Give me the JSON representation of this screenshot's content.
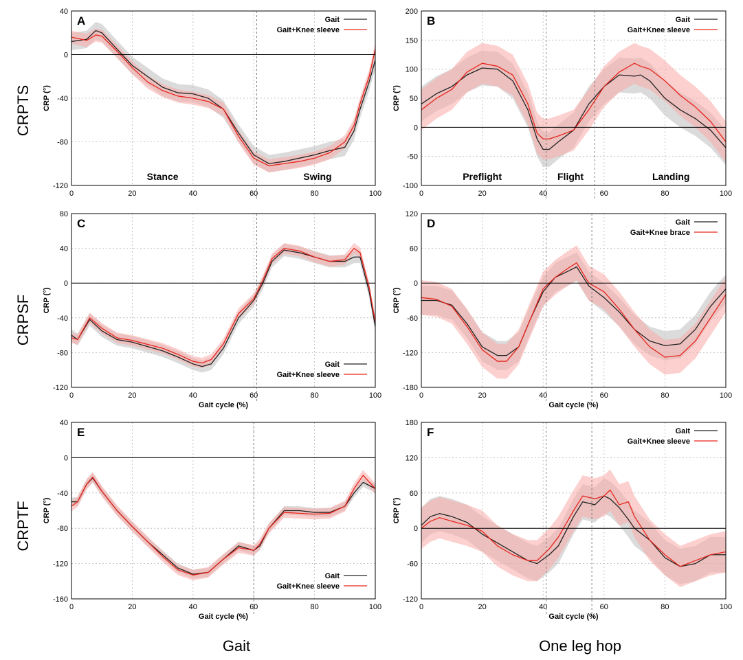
{
  "figure": {
    "row_labels": [
      "CRPTS",
      "CRPSF",
      "CRPTF"
    ],
    "column_titles": [
      "Gait",
      "One leg hop"
    ]
  },
  "colors": {
    "gait": "#222222",
    "sleeve": "#e8241c",
    "gait_band": "#bdbdbd",
    "sleeve_band": "#f7a9a6"
  },
  "chart_data": [
    {
      "panel": "A",
      "type": "line",
      "xlabel": "",
      "ylabel": "CRP (°)",
      "xlim": [
        0,
        100
      ],
      "ylim": [
        -120,
        40
      ],
      "xticks": [
        0,
        20,
        40,
        60,
        80,
        100
      ],
      "yticks": [
        -120,
        -80,
        -40,
        0,
        40
      ],
      "grid": true,
      "legend_position": "top-right",
      "vlines": [
        61
      ],
      "phase_labels": [
        {
          "text": "Stance",
          "x": 30
        },
        {
          "text": "Swing",
          "x": 81
        }
      ],
      "x": [
        0,
        5,
        8,
        10,
        15,
        20,
        25,
        30,
        35,
        40,
        45,
        50,
        55,
        60,
        65,
        70,
        75,
        80,
        85,
        90,
        93,
        95,
        98,
        100
      ],
      "series": [
        {
          "name": "Gait",
          "values": [
            12,
            14,
            22,
            20,
            5,
            -10,
            -20,
            -30,
            -35,
            -36,
            -40,
            -50,
            -72,
            -92,
            -100,
            -98,
            -95,
            -92,
            -88,
            -85,
            -70,
            -50,
            -25,
            -5
          ],
          "sd": 8
        },
        {
          "name": "Gait+Knee sleeve",
          "values": [
            16,
            13,
            18,
            17,
            3,
            -12,
            -25,
            -33,
            -38,
            -40,
            -43,
            -50,
            -75,
            -95,
            -102,
            -100,
            -98,
            -95,
            -90,
            -80,
            -65,
            -45,
            -20,
            5
          ],
          "sd": 6
        }
      ]
    },
    {
      "panel": "B",
      "type": "line",
      "xlabel": "",
      "ylabel": "CRP (°)",
      "xlim": [
        0,
        100
      ],
      "ylim": [
        -100,
        200
      ],
      "xticks": [
        0,
        20,
        40,
        60,
        80,
        100
      ],
      "yticks": [
        -100,
        -50,
        0,
        50,
        100,
        150,
        200
      ],
      "grid": true,
      "legend_position": "top-right",
      "vlines": [
        41,
        57
      ],
      "phase_labels": [
        {
          "text": "Preflight",
          "x": 20
        },
        {
          "text": "Flight",
          "x": 49
        },
        {
          "text": "Landing",
          "x": 82
        }
      ],
      "x": [
        0,
        5,
        10,
        15,
        20,
        25,
        30,
        35,
        38,
        40,
        42,
        45,
        50,
        55,
        60,
        65,
        70,
        72,
        75,
        80,
        85,
        90,
        95,
        100
      ],
      "series": [
        {
          "name": "Gait",
          "values": [
            40,
            58,
            70,
            90,
            102,
            100,
            80,
            30,
            -20,
            -38,
            -38,
            -25,
            -5,
            40,
            70,
            90,
            88,
            90,
            80,
            50,
            30,
            15,
            -5,
            -35
          ],
          "sd": 30
        },
        {
          "name": "Gait+Knee sleeve",
          "values": [
            30,
            50,
            65,
            95,
            110,
            105,
            90,
            40,
            -10,
            -20,
            -20,
            -15,
            -5,
            30,
            70,
            95,
            110,
            105,
            100,
            80,
            55,
            35,
            10,
            -25
          ],
          "sd": 35
        }
      ]
    },
    {
      "panel": "C",
      "type": "line",
      "xlabel": "Gait cycle (%)",
      "ylabel": "CRP (°)",
      "xlim": [
        0,
        100
      ],
      "ylim": [
        -120,
        80
      ],
      "xticks": [
        0,
        20,
        40,
        60,
        80,
        100
      ],
      "yticks": [
        -120,
        -80,
        -40,
        0,
        40,
        80
      ],
      "grid": true,
      "legend_position": "bottom-right",
      "vlines": [
        61
      ],
      "x": [
        0,
        2,
        6,
        10,
        15,
        20,
        30,
        35,
        40,
        43,
        46,
        50,
        55,
        60,
        63,
        66,
        70,
        75,
        80,
        85,
        90,
        93,
        95,
        98,
        100
      ],
      "series": [
        {
          "name": "Gait",
          "values": [
            -60,
            -65,
            -42,
            -55,
            -65,
            -68,
            -78,
            -85,
            -93,
            -96,
            -93,
            -75,
            -40,
            -20,
            0,
            25,
            38,
            35,
            30,
            25,
            25,
            30,
            30,
            -10,
            -50
          ],
          "sd": 7
        },
        {
          "name": "Gait+Knee sleeve",
          "values": [
            -63,
            -65,
            -40,
            -52,
            -63,
            -66,
            -75,
            -82,
            -90,
            -92,
            -88,
            -70,
            -35,
            -18,
            3,
            28,
            40,
            37,
            30,
            25,
            27,
            40,
            35,
            -5,
            -45
          ],
          "sd": 6
        }
      ]
    },
    {
      "panel": "D",
      "type": "line",
      "xlabel": "Gait cycle (%)",
      "ylabel": "CRP (°)",
      "xlim": [
        0,
        100
      ],
      "ylim": [
        -180,
        120
      ],
      "xticks": [
        0,
        20,
        40,
        60,
        80,
        100
      ],
      "yticks": [
        -180,
        -120,
        -60,
        0,
        60,
        120
      ],
      "grid": true,
      "legend_position": "top-right",
      "vlines": [
        41,
        56
      ],
      "x": [
        0,
        5,
        10,
        15,
        20,
        25,
        28,
        32,
        36,
        40,
        44,
        48,
        51,
        55,
        60,
        65,
        70,
        75,
        80,
        85,
        90,
        95,
        100
      ],
      "series": [
        {
          "name": "Gait",
          "values": [
            -30,
            -30,
            -38,
            -70,
            -110,
            -125,
            -125,
            -110,
            -60,
            -15,
            10,
            20,
            28,
            -5,
            -25,
            -50,
            -80,
            -100,
            -108,
            -105,
            -80,
            -40,
            -10
          ],
          "sd": 25
        },
        {
          "name": "Gait+Knee brace",
          "values": [
            -25,
            -28,
            -40,
            -75,
            -115,
            -135,
            -135,
            -110,
            -60,
            -10,
            10,
            25,
            35,
            0,
            -15,
            -45,
            -80,
            -110,
            -128,
            -125,
            -100,
            -60,
            -20
          ],
          "sd": 30
        }
      ]
    },
    {
      "panel": "E",
      "type": "line",
      "xlabel": "Gait cycle (%)",
      "ylabel": "CRP (°)",
      "xlim": [
        0,
        100
      ],
      "ylim": [
        -160,
        40
      ],
      "xticks": [
        0,
        20,
        40,
        60,
        80,
        100
      ],
      "yticks": [
        -160,
        -120,
        -80,
        -40,
        0,
        40
      ],
      "grid": true,
      "legend_position": "bottom-right",
      "vlines": [
        60
      ],
      "x": [
        0,
        2,
        5,
        7,
        10,
        15,
        20,
        25,
        30,
        35,
        40,
        45,
        50,
        55,
        60,
        62,
        65,
        70,
        75,
        80,
        85,
        90,
        93,
        96,
        100
      ],
      "series": [
        {
          "name": "Gait",
          "values": [
            -50,
            -50,
            -30,
            -23,
            -38,
            -60,
            -78,
            -95,
            -110,
            -125,
            -132,
            -130,
            -115,
            -100,
            -105,
            -100,
            -80,
            -60,
            -60,
            -62,
            -62,
            -55,
            -40,
            -28,
            -35
          ],
          "sd": 5
        },
        {
          "name": "Gait+Knee sleeve",
          "values": [
            -55,
            -50,
            -30,
            -22,
            -38,
            -60,
            -78,
            -95,
            -112,
            -127,
            -133,
            -130,
            -115,
            -102,
            -105,
            -98,
            -80,
            -62,
            -63,
            -64,
            -63,
            -55,
            -35,
            -20,
            -35
          ],
          "sd": 6
        }
      ]
    },
    {
      "panel": "F",
      "type": "line",
      "xlabel": "Gait cycle (%)",
      "ylabel": "CRP (°)",
      "xlim": [
        0,
        100
      ],
      "ylim": [
        -120,
        180
      ],
      "xticks": [
        0,
        20,
        40,
        60,
        80,
        100
      ],
      "yticks": [
        -120,
        -60,
        0,
        60,
        120,
        180
      ],
      "grid": true,
      "legend_position": "top-right",
      "vlines": [
        41,
        56
      ],
      "x": [
        0,
        3,
        6,
        10,
        15,
        20,
        25,
        30,
        35,
        38,
        42,
        45,
        50,
        53,
        57,
        60,
        62,
        65,
        68,
        70,
        75,
        80,
        85,
        90,
        95,
        100
      ],
      "series": [
        {
          "name": "Gait",
          "values": [
            5,
            20,
            25,
            20,
            10,
            -10,
            -25,
            -40,
            -55,
            -60,
            -45,
            -30,
            20,
            45,
            40,
            55,
            50,
            35,
            15,
            0,
            -20,
            -50,
            -65,
            -60,
            -45,
            -45
          ],
          "sd": 30
        },
        {
          "name": "Gait+Knee sleeve",
          "values": [
            0,
            12,
            18,
            12,
            5,
            -5,
            -30,
            -45,
            -55,
            -55,
            -35,
            -15,
            30,
            55,
            50,
            55,
            65,
            40,
            45,
            20,
            -20,
            -45,
            -65,
            -55,
            -45,
            -40
          ],
          "sd": 35
        }
      ]
    }
  ]
}
